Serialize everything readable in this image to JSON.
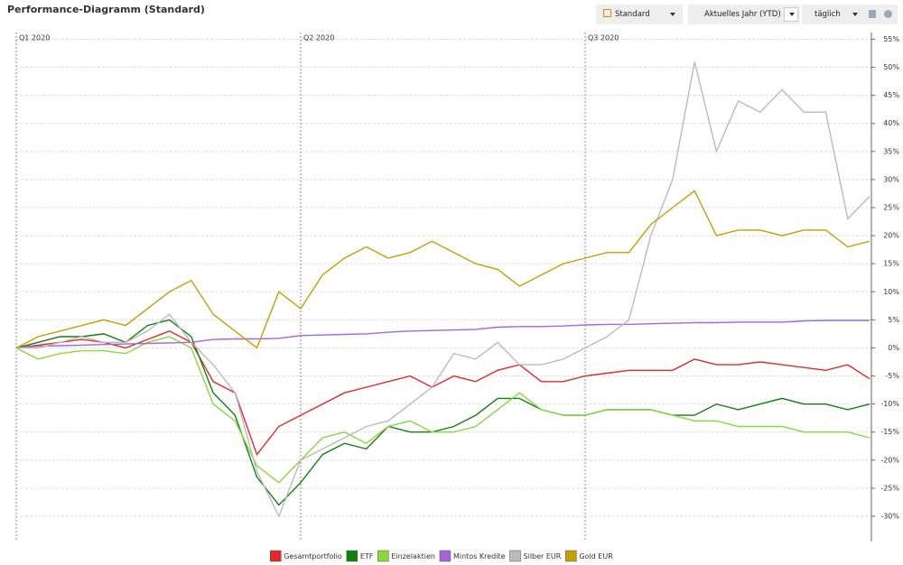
{
  "toolbar": {
    "title": "Performance-Diagramm (Standard)",
    "view": "Standard",
    "period": "Aktuelles Jahr (YTD)",
    "interval": "täglich"
  },
  "chart_data": {
    "type": "line",
    "categories": [
      "Q1 2020",
      null,
      null,
      null,
      null,
      null,
      null,
      null,
      null,
      null,
      null,
      null,
      null,
      "Q2 2020",
      null,
      null,
      null,
      null,
      null,
      null,
      null,
      null,
      null,
      null,
      null,
      null,
      "Q3 2020",
      null,
      null,
      null,
      null,
      null,
      null,
      null,
      null,
      null,
      null,
      null,
      null,
      null
    ],
    "series": [
      {
        "name": "Gesamtportfolio",
        "color": "#e02a2a",
        "values": [
          0,
          0.5,
          1,
          1.5,
          1,
          0,
          1.5,
          3,
          1,
          -6,
          -8,
          -19,
          -14,
          -12,
          -10,
          -8,
          -7,
          -6,
          -5,
          -7,
          -5,
          -6,
          -4,
          -3,
          -6,
          -6,
          -5,
          -4.5,
          -4,
          -4,
          -4,
          -2,
          -3,
          -3,
          -2.5,
          -3,
          -3.5,
          -4,
          -3,
          -5.5
        ]
      },
      {
        "name": "ETF",
        "color": "#118011",
        "values": [
          0,
          1,
          2,
          2,
          2.5,
          1,
          4,
          5,
          2,
          -8,
          -12,
          -23,
          -28,
          -24,
          -19,
          -17,
          -18,
          -14,
          -15,
          -15,
          -14,
          -12,
          -9,
          -9,
          -11,
          -12,
          -12,
          -11,
          -11,
          -11,
          -12,
          -12,
          -10,
          -11,
          -10,
          -9,
          -10,
          -10,
          -11,
          -10
        ]
      },
      {
        "name": "Einzelaktien",
        "color": "#86d83c",
        "values": [
          0,
          -2,
          -1,
          -0.5,
          -0.5,
          -1,
          1,
          2,
          0,
          -10,
          -13,
          -21,
          -24,
          -20,
          -16,
          -15,
          -17,
          -14,
          -13,
          -15,
          -15,
          -14,
          -11,
          -8,
          -11,
          -12,
          -12,
          -11,
          -11,
          -11,
          -12,
          -13,
          -13,
          -14,
          -14,
          -14,
          -15,
          -15,
          -15,
          -16
        ]
      },
      {
        "name": "Mintos Kredite",
        "color": "#a466d6",
        "values": [
          0,
          0.3,
          0.4,
          0.5,
          0.6,
          0.7,
          0.8,
          0.9,
          1,
          1.5,
          1.6,
          1.6,
          1.7,
          2.2,
          2.3,
          2.4,
          2.5,
          2.8,
          3,
          3.1,
          3.2,
          3.3,
          3.7,
          3.8,
          3.8,
          3.9,
          4.1,
          4.2,
          4.2,
          4.3,
          4.4,
          4.5,
          4.5,
          4.6,
          4.6,
          4.6,
          4.8,
          4.9,
          4.9,
          4.9
        ]
      },
      {
        "name": "Silber EUR",
        "color": "#bbbbbb",
        "values": [
          0,
          0,
          1,
          2,
          1,
          1,
          3,
          6,
          1,
          -3,
          -8,
          -22,
          -30,
          -20,
          -18,
          -16,
          -14,
          -13,
          -10,
          -7,
          -1,
          -2,
          1,
          -3,
          -3,
          -2,
          0,
          2,
          5,
          20,
          30,
          51,
          35,
          44,
          42,
          46,
          42,
          42,
          23,
          27
        ]
      },
      {
        "name": "Gold EUR",
        "color": "#c4a000",
        "values": [
          0,
          2,
          3,
          4,
          5,
          4,
          7,
          10,
          12,
          6,
          3,
          0,
          10,
          7,
          13,
          16,
          18,
          16,
          17,
          19,
          17,
          15,
          14,
          11,
          13,
          15,
          16,
          17,
          17,
          22,
          25,
          28,
          20,
          21,
          21,
          20,
          21,
          21,
          18,
          19
        ]
      }
    ],
    "ylim": [
      -34.5,
      56.2
    ],
    "yticks": [
      {
        "value": 55,
        "label": "55%"
      },
      {
        "value": 50,
        "label": "50%"
      },
      {
        "value": 45,
        "label": "45%"
      },
      {
        "value": 40,
        "label": "40%"
      },
      {
        "value": 35,
        "label": "35%"
      },
      {
        "value": 30,
        "label": "30%"
      },
      {
        "value": 25,
        "label": "25%"
      },
      {
        "value": 20,
        "label": "20%"
      },
      {
        "value": 15,
        "label": "15%"
      },
      {
        "value": 10,
        "label": "10%"
      },
      {
        "value": 5,
        "label": "5%"
      },
      {
        "value": 0,
        "label": "0%"
      },
      {
        "value": -5,
        "label": "-5%"
      },
      {
        "value": -10,
        "label": "-10%"
      },
      {
        "value": -15,
        "label": "-15%"
      },
      {
        "value": -20,
        "label": "-20%"
      },
      {
        "value": -25,
        "label": "-25%"
      },
      {
        "value": -30,
        "label": "-30%"
      }
    ],
    "grid": true,
    "legend": "bottom"
  }
}
